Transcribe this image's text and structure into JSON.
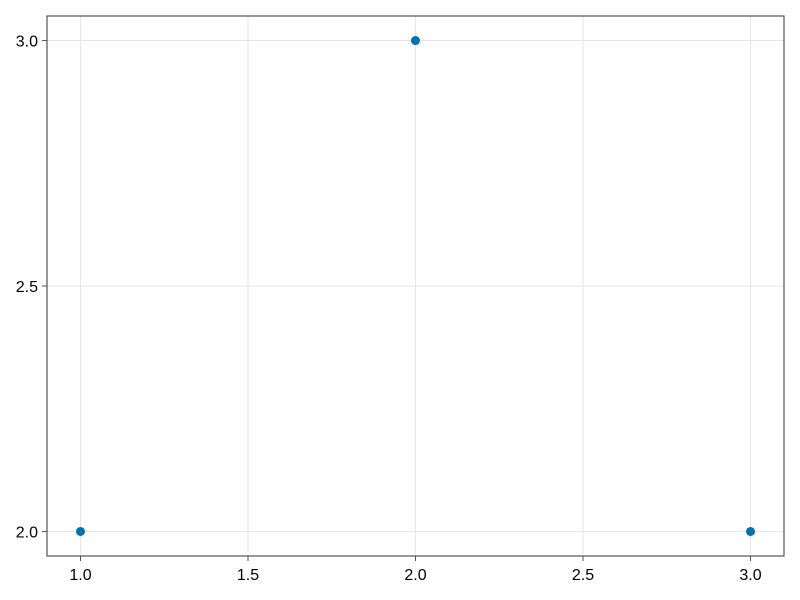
{
  "chart_data": {
    "type": "scatter",
    "title": "",
    "xlabel": "",
    "ylabel": "",
    "x": [
      1,
      2,
      3
    ],
    "y": [
      2,
      3,
      2
    ],
    "xlim": [
      0.9,
      3.1
    ],
    "ylim": [
      1.95,
      3.05
    ],
    "xticks": [
      1.0,
      1.5,
      2.0,
      2.5,
      3.0
    ],
    "yticks": [
      2.0,
      2.5,
      3.0
    ],
    "xtick_labels": [
      "1.0",
      "1.5",
      "2.0",
      "2.5",
      "3.0"
    ],
    "ytick_labels": [
      "2.0",
      "2.5",
      "3.0"
    ],
    "grid": true,
    "marker_color": "#0072b2",
    "grid_color": "#e5e5e5",
    "spine_color": "#555555"
  }
}
